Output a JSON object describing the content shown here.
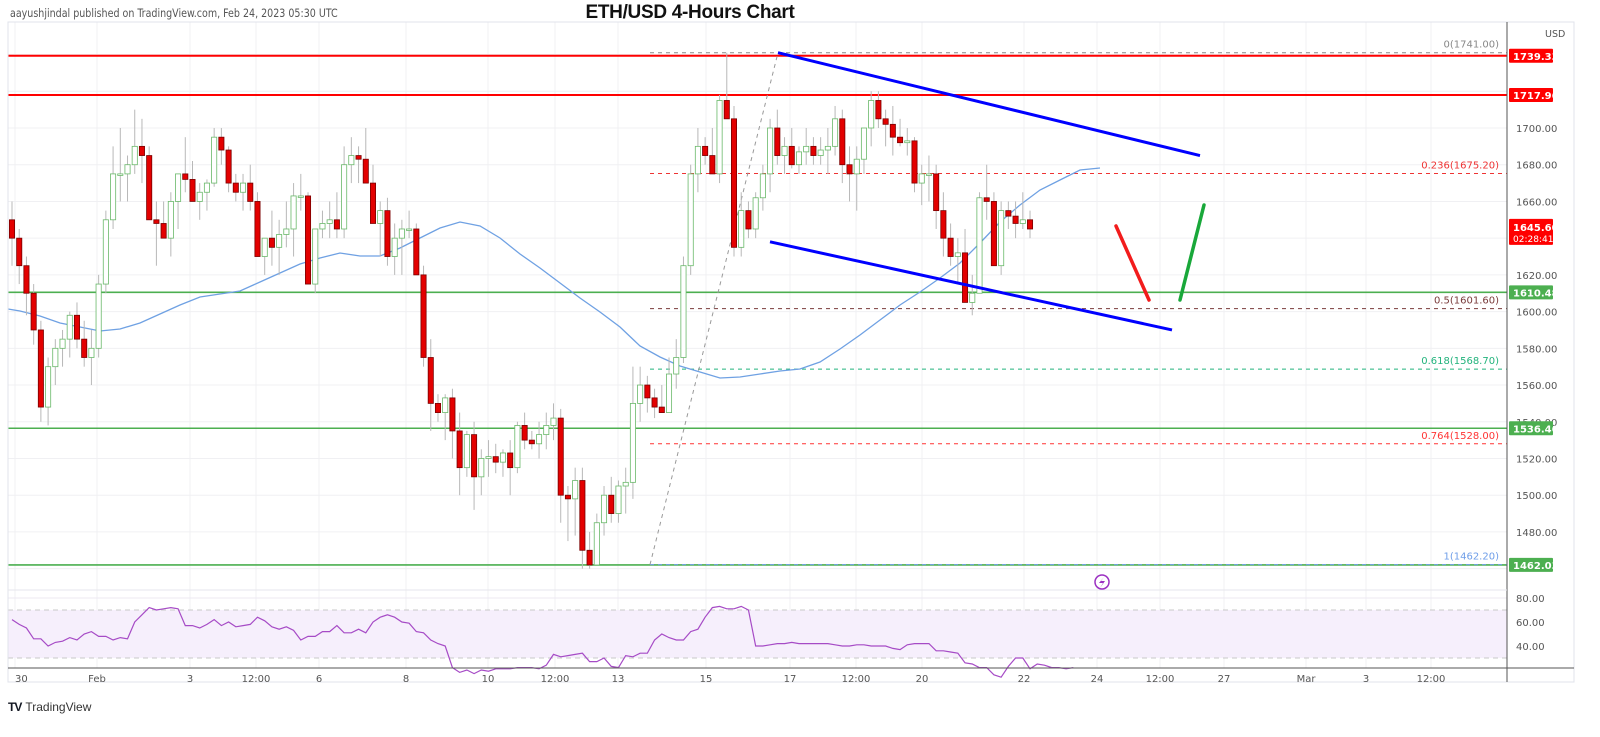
{
  "header": {
    "publisher_line": "aayushjindal published on TradingView.com, Feb 24, 2023 05:30 UTC",
    "title": "ETH/USD 4-Hours Chart"
  },
  "footer": {
    "brand": "TradingView",
    "logo": "TV"
  },
  "colors": {
    "up": "#6ab96a",
    "down": "#e30000",
    "resistance": "#ff0000",
    "support": "#4caf50",
    "channel": "#0000ff",
    "ma": "#6fa1e3",
    "rsi": "#a64bc6",
    "rsi_band": "#f6effc",
    "arrow_down": "#f21c1c",
    "arrow_up": "#19a83a"
  },
  "chart_data": {
    "type": "candlestick",
    "title": "ETH/USD 4-Hours Chart",
    "symbol": "ETH/USD",
    "timeframe": "4H",
    "currency_label": "USD",
    "x_tick_labels": [
      "30",
      "Feb",
      "3",
      "12:00",
      "6",
      "8",
      "10",
      "12:00",
      "13",
      "15",
      "17",
      "12:00",
      "20",
      "22",
      "24",
      "12:00",
      "27",
      "Mar",
      "3",
      "12:00"
    ],
    "y_tick_labels": [
      "1700.00",
      "1680.00",
      "1660.00",
      "1620.00",
      "1600.00",
      "1580.00",
      "1560.00",
      "1540.00",
      "1520.00",
      "1500.00",
      "1480.00"
    ],
    "ylim": [
      1455,
      1765
    ],
    "horizontal_levels": [
      {
        "name": "resistance-1",
        "value": "1739.33",
        "color": "red"
      },
      {
        "name": "resistance-2",
        "value": "1717.96",
        "color": "red"
      },
      {
        "name": "support-1",
        "value": "1610.48",
        "color": "green"
      },
      {
        "name": "support-2",
        "value": "1536.46",
        "color": "green"
      },
      {
        "name": "support-3",
        "value": "1462.03",
        "color": "green"
      }
    ],
    "fibonacci": [
      {
        "label": "0(1741.00)",
        "level": 0,
        "value": 1741.0
      },
      {
        "label": "0.236(1675.20)",
        "level": 0.236,
        "value": 1675.2
      },
      {
        "label": "0.5(1601.60)",
        "level": 0.5,
        "value": 1601.6
      },
      {
        "label": "0.618(1568.70)",
        "level": 0.618,
        "value": 1568.7
      },
      {
        "label": "0.764(1528.00)",
        "level": 0.764,
        "value": 1528.0
      },
      {
        "label": "1(1462.20)",
        "level": 1,
        "value": 1462.2
      }
    ],
    "current_price": {
      "value": "1645.60",
      "countdown": "02:28:41"
    },
    "channel": {
      "upper": {
        "from": [
          17,
          1741
        ],
        "to": [
          "24 12:00",
          1685
        ]
      },
      "lower": {
        "from": [
          17,
          1638
        ],
        "to": [
          "24 12:00",
          1590
        ]
      }
    },
    "projection": {
      "down_to": 1605,
      "up_to": 1660
    },
    "candles_ohlc": [
      [
        1650,
        1660,
        1625,
        1640
      ],
      [
        1640,
        1645,
        1615,
        1625
      ],
      [
        1625,
        1630,
        1598,
        1610
      ],
      [
        1610,
        1615,
        1582,
        1590
      ],
      [
        1590,
        1595,
        1540,
        1548
      ],
      [
        1548,
        1575,
        1538,
        1570
      ],
      [
        1570,
        1585,
        1560,
        1580
      ],
      [
        1580,
        1590,
        1570,
        1585
      ],
      [
        1585,
        1600,
        1575,
        1598
      ],
      [
        1598,
        1605,
        1580,
        1585
      ],
      [
        1585,
        1595,
        1570,
        1575
      ],
      [
        1575,
        1590,
        1560,
        1580
      ],
      [
        1580,
        1620,
        1575,
        1615
      ],
      [
        1615,
        1655,
        1610,
        1650
      ],
      [
        1650,
        1690,
        1645,
        1675
      ],
      [
        1675,
        1700,
        1660,
        1675
      ],
      [
        1675,
        1685,
        1660,
        1680
      ],
      [
        1680,
        1710,
        1675,
        1690
      ],
      [
        1690,
        1705,
        1670,
        1685
      ],
      [
        1685,
        1690,
        1650,
        1650
      ],
      [
        1650,
        1660,
        1625,
        1648
      ],
      [
        1648,
        1660,
        1640,
        1640
      ],
      [
        1640,
        1665,
        1630,
        1660
      ],
      [
        1660,
        1675,
        1645,
        1675
      ],
      [
        1675,
        1695,
        1665,
        1672
      ],
      [
        1672,
        1682,
        1660,
        1660
      ],
      [
        1660,
        1670,
        1650,
        1665
      ],
      [
        1665,
        1672,
        1655,
        1670
      ],
      [
        1670,
        1700,
        1668,
        1695
      ],
      [
        1695,
        1700,
        1680,
        1688
      ],
      [
        1688,
        1690,
        1665,
        1670
      ],
      [
        1670,
        1675,
        1660,
        1665
      ],
      [
        1665,
        1675,
        1655,
        1670
      ],
      [
        1670,
        1680,
        1655,
        1660
      ],
      [
        1660,
        1665,
        1630,
        1630
      ],
      [
        1630,
        1640,
        1620,
        1640
      ],
      [
        1640,
        1655,
        1625,
        1635
      ],
      [
        1635,
        1650,
        1620,
        1642
      ],
      [
        1642,
        1660,
        1635,
        1645
      ],
      [
        1645,
        1670,
        1630,
        1663
      ],
      [
        1663,
        1675,
        1655,
        1663
      ],
      [
        1663,
        1665,
        1615,
        1615
      ],
      [
        1615,
        1645,
        1610,
        1645
      ],
      [
        1645,
        1655,
        1640,
        1648
      ],
      [
        1648,
        1660,
        1640,
        1650
      ],
      [
        1650,
        1665,
        1640,
        1645
      ],
      [
        1645,
        1690,
        1640,
        1680
      ],
      [
        1680,
        1695,
        1670,
        1685
      ],
      [
        1685,
        1690,
        1670,
        1683
      ],
      [
        1683,
        1700,
        1670,
        1670
      ],
      [
        1670,
        1680,
        1650,
        1648
      ],
      [
        1648,
        1660,
        1630,
        1655
      ],
      [
        1655,
        1662,
        1625,
        1630
      ],
      [
        1630,
        1648,
        1620,
        1640
      ],
      [
        1640,
        1650,
        1620,
        1645
      ],
      [
        1645,
        1655,
        1640,
        1645
      ],
      [
        1645,
        1648,
        1620,
        1620
      ],
      [
        1620,
        1625,
        1570,
        1575
      ],
      [
        1575,
        1585,
        1535,
        1550
      ],
      [
        1550,
        1555,
        1540,
        1545
      ],
      [
        1545,
        1555,
        1530,
        1553
      ],
      [
        1553,
        1558,
        1520,
        1535
      ],
      [
        1535,
        1545,
        1500,
        1515
      ],
      [
        1515,
        1535,
        1510,
        1533
      ],
      [
        1533,
        1540,
        1492,
        1510
      ],
      [
        1510,
        1525,
        1500,
        1520
      ],
      [
        1520,
        1530,
        1510,
        1521
      ],
      [
        1521,
        1528,
        1512,
        1518
      ],
      [
        1518,
        1525,
        1510,
        1523
      ],
      [
        1523,
        1530,
        1500,
        1515
      ],
      [
        1515,
        1540,
        1512,
        1538
      ],
      [
        1538,
        1545,
        1525,
        1530
      ],
      [
        1530,
        1535,
        1525,
        1528
      ],
      [
        1528,
        1540,
        1520,
        1533
      ],
      [
        1533,
        1545,
        1525,
        1538
      ],
      [
        1538,
        1550,
        1530,
        1542
      ],
      [
        1542,
        1547,
        1485,
        1500
      ],
      [
        1500,
        1505,
        1475,
        1498
      ],
      [
        1498,
        1515,
        1478,
        1508
      ],
      [
        1508,
        1515,
        1460,
        1470
      ],
      [
        1470,
        1480,
        1460,
        1462
      ],
      [
        1462,
        1490,
        1462,
        1485
      ],
      [
        1485,
        1505,
        1478,
        1500
      ],
      [
        1500,
        1510,
        1485,
        1490
      ],
      [
        1490,
        1508,
        1485,
        1505
      ],
      [
        1505,
        1515,
        1490,
        1507
      ],
      [
        1507,
        1570,
        1498,
        1550
      ],
      [
        1550,
        1570,
        1540,
        1560
      ],
      [
        1560,
        1565,
        1545,
        1553
      ],
      [
        1553,
        1558,
        1542,
        1548
      ],
      [
        1548,
        1560,
        1545,
        1545
      ],
      [
        1545,
        1575,
        1545,
        1566
      ],
      [
        1566,
        1585,
        1558,
        1575
      ],
      [
        1575,
        1630,
        1572,
        1625
      ],
      [
        1625,
        1680,
        1620,
        1675
      ],
      [
        1675,
        1700,
        1665,
        1690
      ],
      [
        1690,
        1695,
        1680,
        1685
      ],
      [
        1685,
        1700,
        1675,
        1675
      ],
      [
        1675,
        1718,
        1670,
        1715
      ],
      [
        1715,
        1741,
        1710,
        1705
      ],
      [
        1705,
        1712,
        1630,
        1635
      ],
      [
        1635,
        1665,
        1630,
        1655
      ],
      [
        1655,
        1660,
        1640,
        1645
      ],
      [
        1645,
        1665,
        1640,
        1662
      ],
      [
        1662,
        1680,
        1655,
        1675
      ],
      [
        1675,
        1705,
        1665,
        1700
      ],
      [
        1700,
        1710,
        1680,
        1685
      ],
      [
        1685,
        1695,
        1675,
        1690
      ],
      [
        1690,
        1700,
        1678,
        1680
      ],
      [
        1680,
        1690,
        1675,
        1687
      ],
      [
        1687,
        1700,
        1680,
        1690
      ],
      [
        1690,
        1695,
        1680,
        1685
      ],
      [
        1685,
        1695,
        1680,
        1688
      ],
      [
        1688,
        1700,
        1675,
        1690
      ],
      [
        1690,
        1712,
        1685,
        1705
      ],
      [
        1705,
        1710,
        1670,
        1680
      ],
      [
        1680,
        1690,
        1660,
        1675
      ],
      [
        1675,
        1690,
        1655,
        1683
      ],
      [
        1683,
        1700,
        1675,
        1700
      ],
      [
        1700,
        1720,
        1690,
        1715
      ],
      [
        1715,
        1720,
        1700,
        1705
      ],
      [
        1705,
        1710,
        1690,
        1702
      ],
      [
        1702,
        1712,
        1685,
        1695
      ],
      [
        1695,
        1705,
        1690,
        1692
      ],
      [
        1692,
        1700,
        1685,
        1693
      ],
      [
        1693,
        1695,
        1665,
        1670
      ],
      [
        1670,
        1680,
        1658,
        1675
      ],
      [
        1675,
        1685,
        1660,
        1675
      ],
      [
        1675,
        1680,
        1645,
        1655
      ],
      [
        1655,
        1665,
        1630,
        1640
      ],
      [
        1640,
        1648,
        1625,
        1630
      ],
      [
        1630,
        1640,
        1615,
        1632
      ],
      [
        1632,
        1645,
        1605,
        1605
      ],
      [
        1605,
        1620,
        1598,
        1610
      ],
      [
        1610,
        1665,
        1610,
        1662
      ],
      [
        1662,
        1680,
        1650,
        1660
      ],
      [
        1660,
        1665,
        1625,
        1625
      ],
      [
        1625,
        1660,
        1620,
        1655
      ],
      [
        1655,
        1660,
        1645,
        1652
      ],
      [
        1652,
        1660,
        1640,
        1648
      ],
      [
        1648,
        1665,
        1645,
        1650
      ],
      [
        1650,
        1655,
        1640,
        1645
      ]
    ],
    "moving_average": {
      "color": "blue",
      "note": "smooth MA line under price"
    },
    "rsi": {
      "levels": [
        "80.00",
        "60.00",
        "40.00"
      ],
      "band": [
        30,
        70
      ],
      "values": [
        62,
        58,
        55,
        46,
        46,
        40,
        43,
        44,
        47,
        45,
        50,
        52,
        48,
        48,
        45,
        47,
        46,
        60,
        66,
        72,
        70,
        71,
        72,
        71,
        57,
        57,
        55,
        58,
        62,
        57,
        60,
        56,
        57,
        58,
        64,
        61,
        56,
        54,
        56,
        53,
        45,
        48,
        48,
        52,
        52,
        57,
        51,
        51,
        54,
        51,
        60,
        64,
        66,
        64,
        60,
        59,
        52,
        51,
        45,
        42,
        40,
        22,
        18,
        20,
        17,
        20,
        19,
        21,
        21,
        21,
        22,
        22,
        22,
        21,
        24,
        33,
        31,
        32,
        33,
        34,
        27,
        27,
        30,
        23,
        22,
        32,
        31,
        34,
        34,
        45,
        50,
        47,
        45,
        45,
        52,
        54,
        64,
        72,
        73,
        71,
        71,
        73,
        70,
        40,
        40,
        41,
        42,
        42,
        43,
        42,
        42,
        42,
        42,
        42,
        41,
        40,
        40,
        41,
        41,
        40,
        40,
        40,
        38,
        37,
        41,
        42,
        42,
        42,
        36,
        36,
        35,
        34,
        26,
        25,
        22,
        22,
        16,
        14,
        23,
        30,
        30,
        21,
        25,
        24,
        22,
        22,
        21,
        22
      ]
    }
  },
  "price_axis": {
    "unit": "USD",
    "badges": [
      {
        "label": "1739.33",
        "color": "red"
      },
      {
        "label": "1717.96",
        "color": "red"
      },
      {
        "label": "1645.60",
        "sub": "02:28:41",
        "color": "red"
      },
      {
        "label": "1610.48",
        "color": "green"
      },
      {
        "label": "1536.46",
        "color": "green"
      },
      {
        "label": "1462.03",
        "color": "green"
      }
    ],
    "rsi_labels": [
      "80.00",
      "60.00",
      "40.00"
    ]
  },
  "icons": {
    "event_marker": "lightning-icon"
  }
}
